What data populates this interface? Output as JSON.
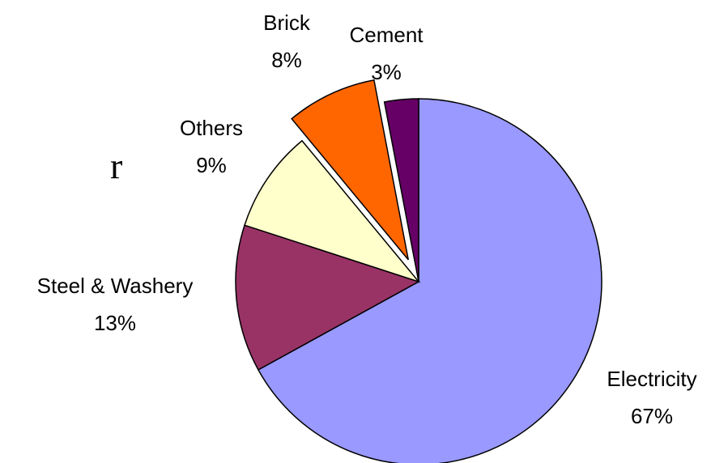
{
  "chart_data": {
    "type": "pie",
    "title": "r",
    "categories": [
      "Electricity",
      "Steel & Washery",
      "Others",
      "Brick",
      "Cement"
    ],
    "values": [
      67,
      13,
      9,
      8,
      3
    ],
    "value_labels": [
      "67%",
      "13%",
      "9%",
      "8%",
      "3%"
    ],
    "colors": [
      "#9999ff",
      "#993366",
      "#ffffcc",
      "#ff6600",
      "#660066"
    ],
    "exploded": [
      false,
      false,
      false,
      true,
      false
    ]
  }
}
